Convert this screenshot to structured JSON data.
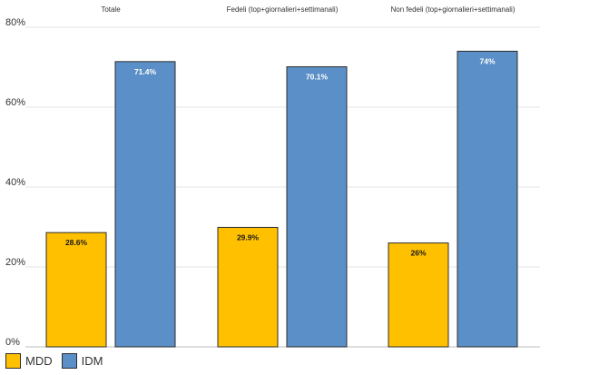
{
  "chart_data": {
    "type": "bar",
    "categories": [
      "Totale",
      "Fedeli (top+giornalieri+settimanali)",
      "Non fedeli (top+giornalieri+settimanali)"
    ],
    "series": [
      {
        "name": "MDD",
        "values": [
          28.6,
          29.9,
          26
        ],
        "labels": [
          "28.6%",
          "29.9%",
          "26%"
        ],
        "color": "#FFC000"
      },
      {
        "name": "IDM",
        "values": [
          71.4,
          70.1,
          74
        ],
        "labels": [
          "71.4%",
          "70.1%",
          "74%"
        ],
        "color": "#5B8FC7"
      }
    ],
    "ylim": [
      0,
      80
    ],
    "yticks": [
      0,
      20,
      40,
      60,
      80
    ],
    "ytick_labels": [
      "0%",
      "20%",
      "40%",
      "60%",
      "80%"
    ],
    "grid": true,
    "legend_position": "bottom-left",
    "label_colors": {
      "MDD": "#1a1a1a",
      "IDM": "#ffffff"
    },
    "bar_border": "#2d2d2d"
  }
}
